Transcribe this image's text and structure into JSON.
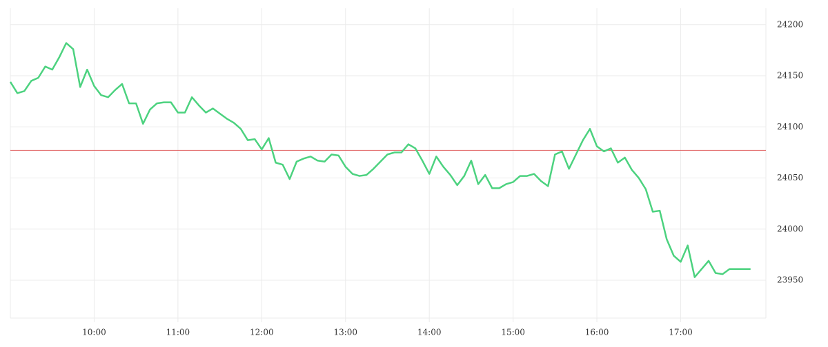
{
  "chart_data": {
    "type": "line",
    "x": [
      540,
      545,
      550,
      555,
      560,
      565,
      570,
      575,
      580,
      585,
      590,
      595,
      600,
      605,
      610,
      615,
      620,
      625,
      630,
      635,
      640,
      645,
      650,
      655,
      660,
      665,
      670,
      675,
      680,
      685,
      690,
      695,
      700,
      705,
      710,
      715,
      720,
      725,
      730,
      735,
      740,
      745,
      750,
      755,
      760,
      765,
      770,
      775,
      780,
      785,
      790,
      795,
      800,
      805,
      810,
      815,
      820,
      825,
      830,
      835,
      840,
      845,
      850,
      855,
      860,
      865,
      870,
      875,
      880,
      885,
      890,
      895,
      900,
      905,
      910,
      915,
      920,
      925,
      930,
      935,
      940,
      945,
      950,
      955,
      960,
      965,
      970,
      975,
      980,
      985,
      990,
      995,
      1000,
      1005,
      1010,
      1015,
      1020,
      1025,
      1030,
      1035,
      1040,
      1045,
      1050,
      1055,
      1060,
      1065,
      1070
    ],
    "series": [
      {
        "color": "#4cd27f",
        "values": [
          24144,
          24133,
          24135,
          24145,
          24148,
          24159,
          24156,
          24168,
          24182,
          24176,
          24139,
          24156,
          24140,
          24131,
          24129,
          24136,
          24142,
          24123,
          24123,
          24103,
          24117,
          24123,
          24124,
          24124,
          24114,
          24114,
          24129,
          24121,
          24114,
          24118,
          24113,
          24108,
          24104,
          24098,
          24087,
          24088,
          24078,
          24089,
          24065,
          24063,
          24049,
          24066,
          24069,
          24071,
          24067,
          24066,
          24073,
          24072,
          24061,
          24054,
          24052,
          24053,
          24059,
          24066,
          24073,
          24075,
          24075,
          24083,
          24079,
          24067,
          24054,
          24071,
          24061,
          24053,
          24043,
          24052,
          24067,
          24044,
          24053,
          24040,
          24040,
          24044,
          24046,
          24052,
          24052,
          24054,
          24047,
          24042,
          24073,
          24076,
          24059,
          24073,
          24087,
          24098,
          24081,
          24076,
          24079,
          24065,
          24070,
          24058,
          24050,
          24039,
          24017,
          24018,
          23990,
          23974,
          23968,
          23984,
          23953,
          23961,
          23969,
          23957,
          23956,
          23961,
          23961,
          23961,
          23961
        ]
      }
    ],
    "reference_line": {
      "value": 24077,
      "color": "#e06060"
    },
    "xlim": [
      540,
      1081
    ],
    "xticks": [
      {
        "value": 600,
        "label": "10:00"
      },
      {
        "value": 660,
        "label": "11:00"
      },
      {
        "value": 720,
        "label": "12:00"
      },
      {
        "value": 780,
        "label": "13:00"
      },
      {
        "value": 840,
        "label": "14:00"
      },
      {
        "value": 900,
        "label": "15:00"
      },
      {
        "value": 960,
        "label": "16:00"
      },
      {
        "value": 1020,
        "label": "17:00"
      }
    ],
    "ylim": [
      23913,
      24216
    ],
    "yticks": [
      23950,
      24000,
      24050,
      24100,
      24150,
      24200
    ],
    "grid": true
  }
}
